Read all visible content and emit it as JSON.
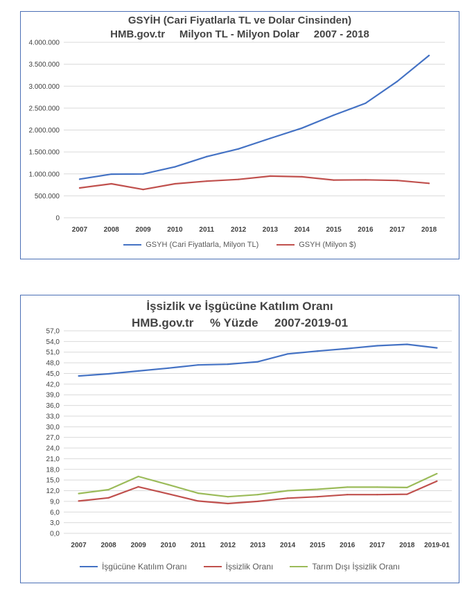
{
  "chart_data": [
    {
      "type": "line",
      "title_line1": "GSYİH (Cari Fiyatlarla TL ve Dolar Cinsinden)",
      "title_line2": "HMB.gov.tr     Milyon TL - Milyon Dolar     2007 - 2018",
      "categories": [
        "2007",
        "2008",
        "2009",
        "2010",
        "2011",
        "2012",
        "2013",
        "2014",
        "2015",
        "2016",
        "2017",
        "2018"
      ],
      "yticks": [
        "0",
        "500.000",
        "1.000.000",
        "1.500.000",
        "2.000.000",
        "2.500.000",
        "3.000.000",
        "3.500.000",
        "4.000.000"
      ],
      "ylim": [
        0,
        4000000
      ],
      "grid": true,
      "legend_position": "bottom",
      "series": [
        {
          "name": "GSYH (Cari Fiyatlarla, Milyon TL)",
          "color": "#4472c4",
          "values": [
            880000,
            995000,
            999000,
            1160000,
            1395000,
            1570000,
            1810000,
            2045000,
            2340000,
            2610000,
            3110000,
            3700000
          ]
        },
        {
          "name": "GSYH (Milyon $)",
          "color": "#c0504d",
          "values": [
            680000,
            775000,
            645000,
            775000,
            835000,
            875000,
            950000,
            935000,
            860000,
            865000,
            850000,
            785000
          ]
        }
      ]
    },
    {
      "type": "line",
      "title_line1": "İşsizlik ve İşgücüne Katılım Oranı",
      "title_line2": "HMB.gov.tr     % Yüzde     2007-2019-01",
      "categories": [
        "2007",
        "2008",
        "2009",
        "2010",
        "2011",
        "2012",
        "2013",
        "2014",
        "2015",
        "2016",
        "2017",
        "2018",
        "2019-01"
      ],
      "yticks": [
        "0,0",
        "3,0",
        "6,0",
        "9,0",
        "12,0",
        "15,0",
        "18,0",
        "21,0",
        "24,0",
        "27,0",
        "30,0",
        "33,0",
        "36,0",
        "39,0",
        "42,0",
        "45,0",
        "48,0",
        "51,0",
        "54,0",
        "57,0"
      ],
      "ylim": [
        0,
        57
      ],
      "grid": true,
      "legend_position": "bottom",
      "series": [
        {
          "name": "İşgücüne Katılım Oranı",
          "color": "#4472c4",
          "values": [
            44.3,
            44.9,
            45.7,
            46.5,
            47.4,
            47.6,
            48.3,
            50.5,
            51.3,
            52.0,
            52.8,
            53.2,
            52.2
          ]
        },
        {
          "name": "İşsizlik Oranı",
          "color": "#c0504d",
          "values": [
            9.1,
            10.0,
            13.1,
            11.1,
            9.1,
            8.4,
            9.0,
            9.9,
            10.3,
            10.9,
            10.9,
            11.0,
            14.7
          ]
        },
        {
          "name": "Tarım Dışı İşsizlik Oranı",
          "color": "#9bbb59",
          "values": [
            11.2,
            12.3,
            16.0,
            13.7,
            11.3,
            10.3,
            10.9,
            12.0,
            12.4,
            13.0,
            13.0,
            12.9,
            16.8
          ]
        }
      ]
    }
  ]
}
